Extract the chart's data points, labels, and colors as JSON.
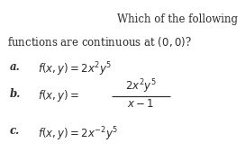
{
  "background_color": "#ffffff",
  "title_line1": "Which of the following",
  "title_line2": "functions are continuous at $(0, 0)$?",
  "item_a_label": "\\textbf{a.}",
  "item_a_func": "$f(x, y) = 2x^2y^5$",
  "item_b_label": "\\textbf{b.}",
  "item_b_func_left": "$f(x, y) =$",
  "item_b_numerator": "$2x^2y^5$",
  "item_b_denominator": "$x - 1$",
  "item_c_label": "\\textbf{c.}",
  "item_c_func": "$f(x, y) = 2x^{-2}y^5$",
  "font_size": 8.5,
  "text_color": "#2b2b2b"
}
